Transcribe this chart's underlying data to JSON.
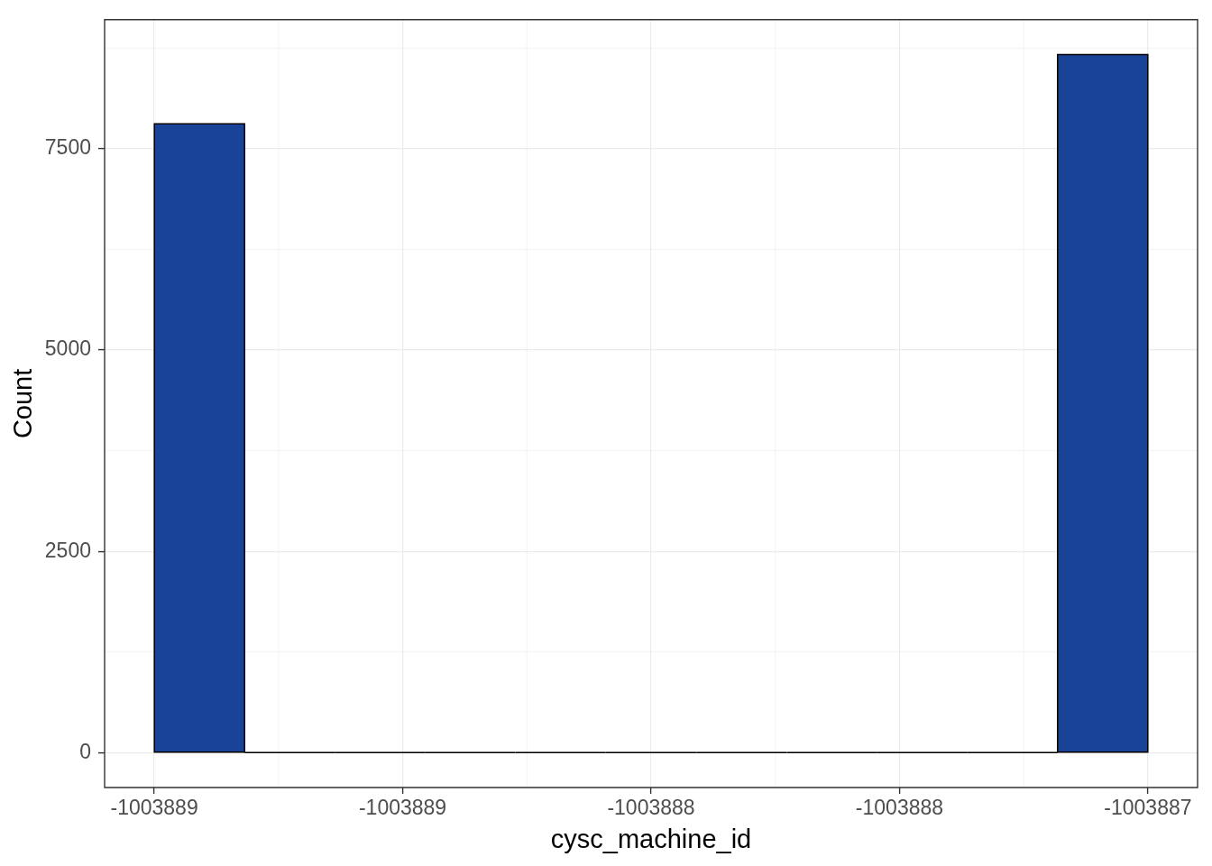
{
  "chart_data": {
    "type": "histogram",
    "xlabel": "cysc_machine_id",
    "ylabel": "Count",
    "bins": [
      -1003889,
      -1003888.818,
      -1003888.636,
      -1003888.455,
      -1003888.273,
      -1003888.091,
      -1003887.909,
      -1003887.727,
      -1003887.545,
      -1003887.364,
      -1003887.182,
      -1003887
    ],
    "values": [
      7810,
      0,
      0,
      0,
      0,
      0,
      0,
      0,
      0,
      0,
      8670
    ],
    "color": "#184397",
    "xlim": [
      -1003889.1,
      -1003886.9
    ],
    "xticks": [
      -1003889,
      {
        "value": -1003888.5,
        "label": "-1003889"
      },
      -1003888,
      {
        "value": -1003887.5,
        "label": "-1003888"
      },
      -1003887
    ],
    "ylim": [
      -434,
      9104
    ],
    "yticks": [
      0,
      2500,
      5000,
      7500
    ],
    "grid": true
  }
}
